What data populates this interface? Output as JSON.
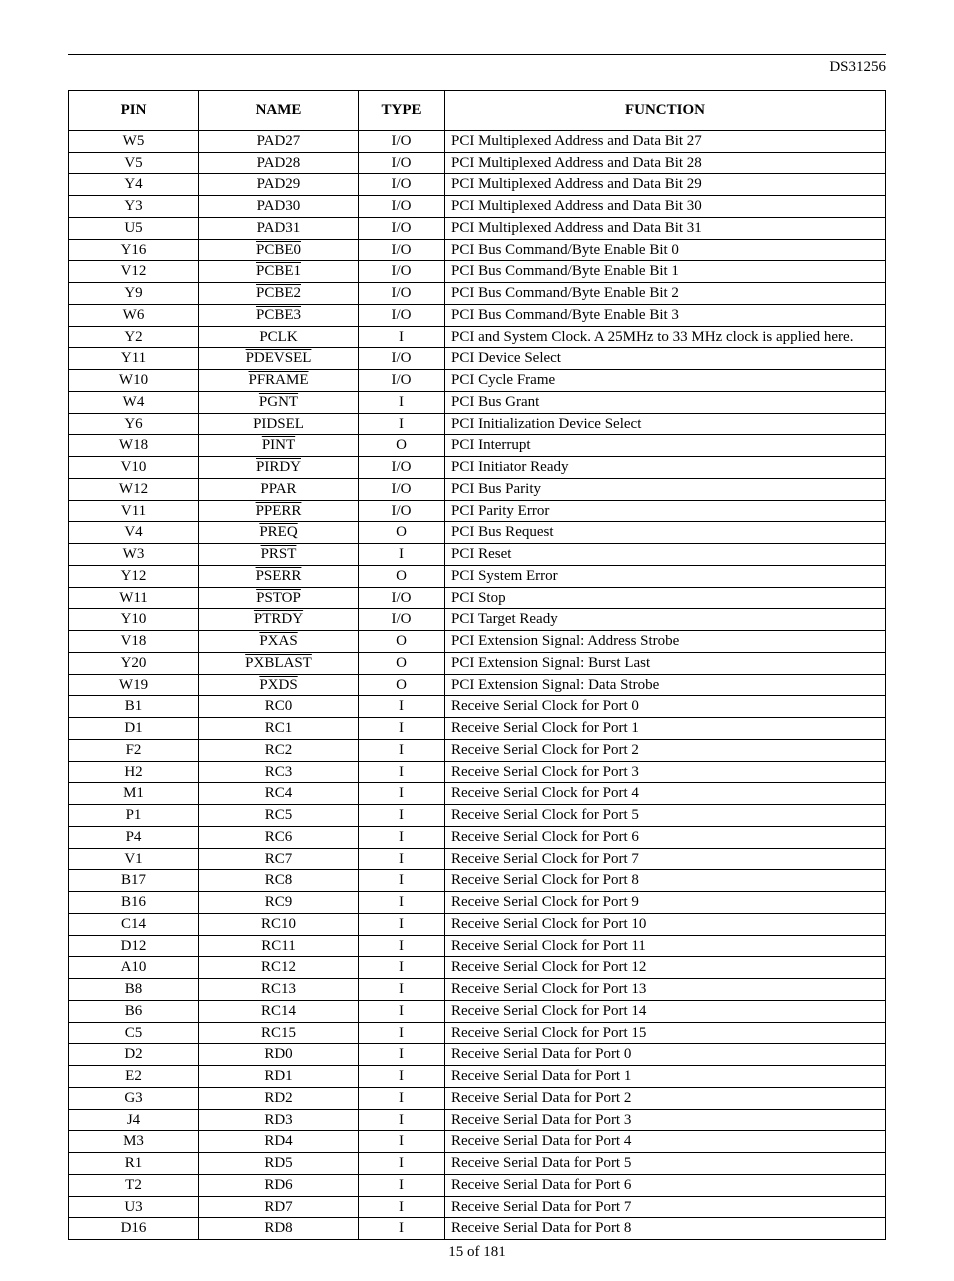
{
  "doc_id": "DS31256",
  "footer": "15 of 181",
  "table": {
    "headers": {
      "pin": "PIN",
      "name": "NAME",
      "type": "TYPE",
      "function": "FUNCTION"
    },
    "rows": [
      {
        "pin": "W5",
        "name": "PAD27",
        "overline": false,
        "type": "I/O",
        "function": "PCI Multiplexed Address and Data Bit 27"
      },
      {
        "pin": "V5",
        "name": "PAD28",
        "overline": false,
        "type": "I/O",
        "function": "PCI Multiplexed Address and Data Bit 28"
      },
      {
        "pin": "Y4",
        "name": "PAD29",
        "overline": false,
        "type": "I/O",
        "function": "PCI Multiplexed Address and Data Bit 29"
      },
      {
        "pin": "Y3",
        "name": "PAD30",
        "overline": false,
        "type": "I/O",
        "function": "PCI Multiplexed Address and Data Bit 30"
      },
      {
        "pin": "U5",
        "name": "PAD31",
        "overline": false,
        "type": "I/O",
        "function": "PCI Multiplexed Address and Data Bit 31"
      },
      {
        "pin": "Y16",
        "name": "PCBE0",
        "overline": true,
        "type": "I/O",
        "function": "PCI Bus Command/Byte Enable Bit 0"
      },
      {
        "pin": "V12",
        "name": "PCBE1",
        "overline": true,
        "type": "I/O",
        "function": "PCI Bus Command/Byte Enable Bit 1"
      },
      {
        "pin": "Y9",
        "name": "PCBE2",
        "overline": true,
        "type": "I/O",
        "function": "PCI Bus Command/Byte Enable Bit 2"
      },
      {
        "pin": "W6",
        "name": "PCBE3",
        "overline": true,
        "type": "I/O",
        "function": "PCI Bus Command/Byte Enable Bit 3"
      },
      {
        "pin": "Y2",
        "name": "PCLK",
        "overline": false,
        "type": "I",
        "function": "PCI and System Clock. A 25MHz to 33 MHz clock is applied here."
      },
      {
        "pin": "Y11",
        "name": "PDEVSEL",
        "overline": true,
        "type": "I/O",
        "function": "PCI Device Select"
      },
      {
        "pin": "W10",
        "name": "PFRAME",
        "overline": true,
        "type": "I/O",
        "function": "PCI Cycle Frame"
      },
      {
        "pin": "W4",
        "name": "PGNT",
        "overline": true,
        "type": "I",
        "function": "PCI Bus Grant"
      },
      {
        "pin": "Y6",
        "name": "PIDSEL",
        "overline": false,
        "type": "I",
        "function": "PCI Initialization Device Select"
      },
      {
        "pin": "W18",
        "name": "PINT",
        "overline": true,
        "type": "O",
        "function": "PCI Interrupt"
      },
      {
        "pin": "V10",
        "name": "PIRDY",
        "overline": true,
        "type": "I/O",
        "function": "PCI Initiator Ready"
      },
      {
        "pin": "W12",
        "name": "PPAR",
        "overline": false,
        "type": "I/O",
        "function": "PCI Bus Parity"
      },
      {
        "pin": "V11",
        "name": "PPERR",
        "overline": true,
        "type": "I/O",
        "function": "PCI Parity Error"
      },
      {
        "pin": "V4",
        "name": "PREQ",
        "overline": true,
        "type": "O",
        "function": "PCI Bus Request"
      },
      {
        "pin": "W3",
        "name": "PRST",
        "overline": true,
        "type": "I",
        "function": "PCI Reset"
      },
      {
        "pin": "Y12",
        "name": "PSERR",
        "overline": true,
        "type": "O",
        "function": "PCI System Error"
      },
      {
        "pin": "W11",
        "name": "PSTOP",
        "overline": true,
        "type": "I/O",
        "function": "PCI Stop"
      },
      {
        "pin": "Y10",
        "name": "PTRDY",
        "overline": true,
        "type": "I/O",
        "function": "PCI Target Ready"
      },
      {
        "pin": "V18",
        "name": "PXAS",
        "overline": true,
        "type": "O",
        "function": "PCI Extension Signal: Address Strobe"
      },
      {
        "pin": "Y20",
        "name": "PXBLAST",
        "overline": true,
        "type": "O",
        "function": "PCI Extension Signal: Burst Last"
      },
      {
        "pin": "W19",
        "name": "PXDS",
        "overline": true,
        "type": "O",
        "function": "PCI Extension Signal: Data Strobe"
      },
      {
        "pin": "B1",
        "name": "RC0",
        "overline": false,
        "type": "I",
        "function": "Receive Serial Clock for Port 0"
      },
      {
        "pin": "D1",
        "name": "RC1",
        "overline": false,
        "type": "I",
        "function": "Receive Serial Clock for Port 1"
      },
      {
        "pin": "F2",
        "name": "RC2",
        "overline": false,
        "type": "I",
        "function": "Receive Serial Clock for Port 2"
      },
      {
        "pin": "H2",
        "name": "RC3",
        "overline": false,
        "type": "I",
        "function": "Receive Serial Clock for Port 3"
      },
      {
        "pin": "M1",
        "name": "RC4",
        "overline": false,
        "type": "I",
        "function": "Receive Serial Clock for Port 4"
      },
      {
        "pin": "P1",
        "name": "RC5",
        "overline": false,
        "type": "I",
        "function": "Receive Serial Clock for Port 5"
      },
      {
        "pin": "P4",
        "name": "RC6",
        "overline": false,
        "type": "I",
        "function": "Receive Serial Clock for Port 6"
      },
      {
        "pin": "V1",
        "name": "RC7",
        "overline": false,
        "type": "I",
        "function": "Receive Serial Clock for Port 7"
      },
      {
        "pin": "B17",
        "name": "RC8",
        "overline": false,
        "type": "I",
        "function": "Receive Serial Clock for Port 8"
      },
      {
        "pin": "B16",
        "name": "RC9",
        "overline": false,
        "type": "I",
        "function": "Receive Serial Clock for Port 9"
      },
      {
        "pin": "C14",
        "name": "RC10",
        "overline": false,
        "type": "I",
        "function": "Receive Serial Clock for Port 10"
      },
      {
        "pin": "D12",
        "name": "RC11",
        "overline": false,
        "type": "I",
        "function": "Receive Serial Clock for Port 11"
      },
      {
        "pin": "A10",
        "name": "RC12",
        "overline": false,
        "type": "I",
        "function": "Receive Serial Clock for Port 12"
      },
      {
        "pin": "B8",
        "name": "RC13",
        "overline": false,
        "type": "I",
        "function": "Receive Serial Clock for Port 13"
      },
      {
        "pin": "B6",
        "name": "RC14",
        "overline": false,
        "type": "I",
        "function": "Receive Serial Clock for Port 14"
      },
      {
        "pin": "C5",
        "name": "RC15",
        "overline": false,
        "type": "I",
        "function": "Receive Serial Clock for Port 15"
      },
      {
        "pin": "D2",
        "name": "RD0",
        "overline": false,
        "type": "I",
        "function": "Receive Serial Data for Port 0"
      },
      {
        "pin": "E2",
        "name": "RD1",
        "overline": false,
        "type": "I",
        "function": "Receive Serial Data for Port 1"
      },
      {
        "pin": "G3",
        "name": "RD2",
        "overline": false,
        "type": "I",
        "function": "Receive Serial Data for Port 2"
      },
      {
        "pin": "J4",
        "name": "RD3",
        "overline": false,
        "type": "I",
        "function": "Receive Serial Data for Port 3"
      },
      {
        "pin": "M3",
        "name": "RD4",
        "overline": false,
        "type": "I",
        "function": "Receive Serial Data for Port 4"
      },
      {
        "pin": "R1",
        "name": "RD5",
        "overline": false,
        "type": "I",
        "function": "Receive Serial Data for Port 5"
      },
      {
        "pin": "T2",
        "name": "RD6",
        "overline": false,
        "type": "I",
        "function": "Receive Serial Data for Port 6"
      },
      {
        "pin": "U3",
        "name": "RD7",
        "overline": false,
        "type": "I",
        "function": "Receive Serial Data for Port 7"
      },
      {
        "pin": "D16",
        "name": "RD8",
        "overline": false,
        "type": "I",
        "function": "Receive Serial Data for Port 8"
      }
    ]
  }
}
